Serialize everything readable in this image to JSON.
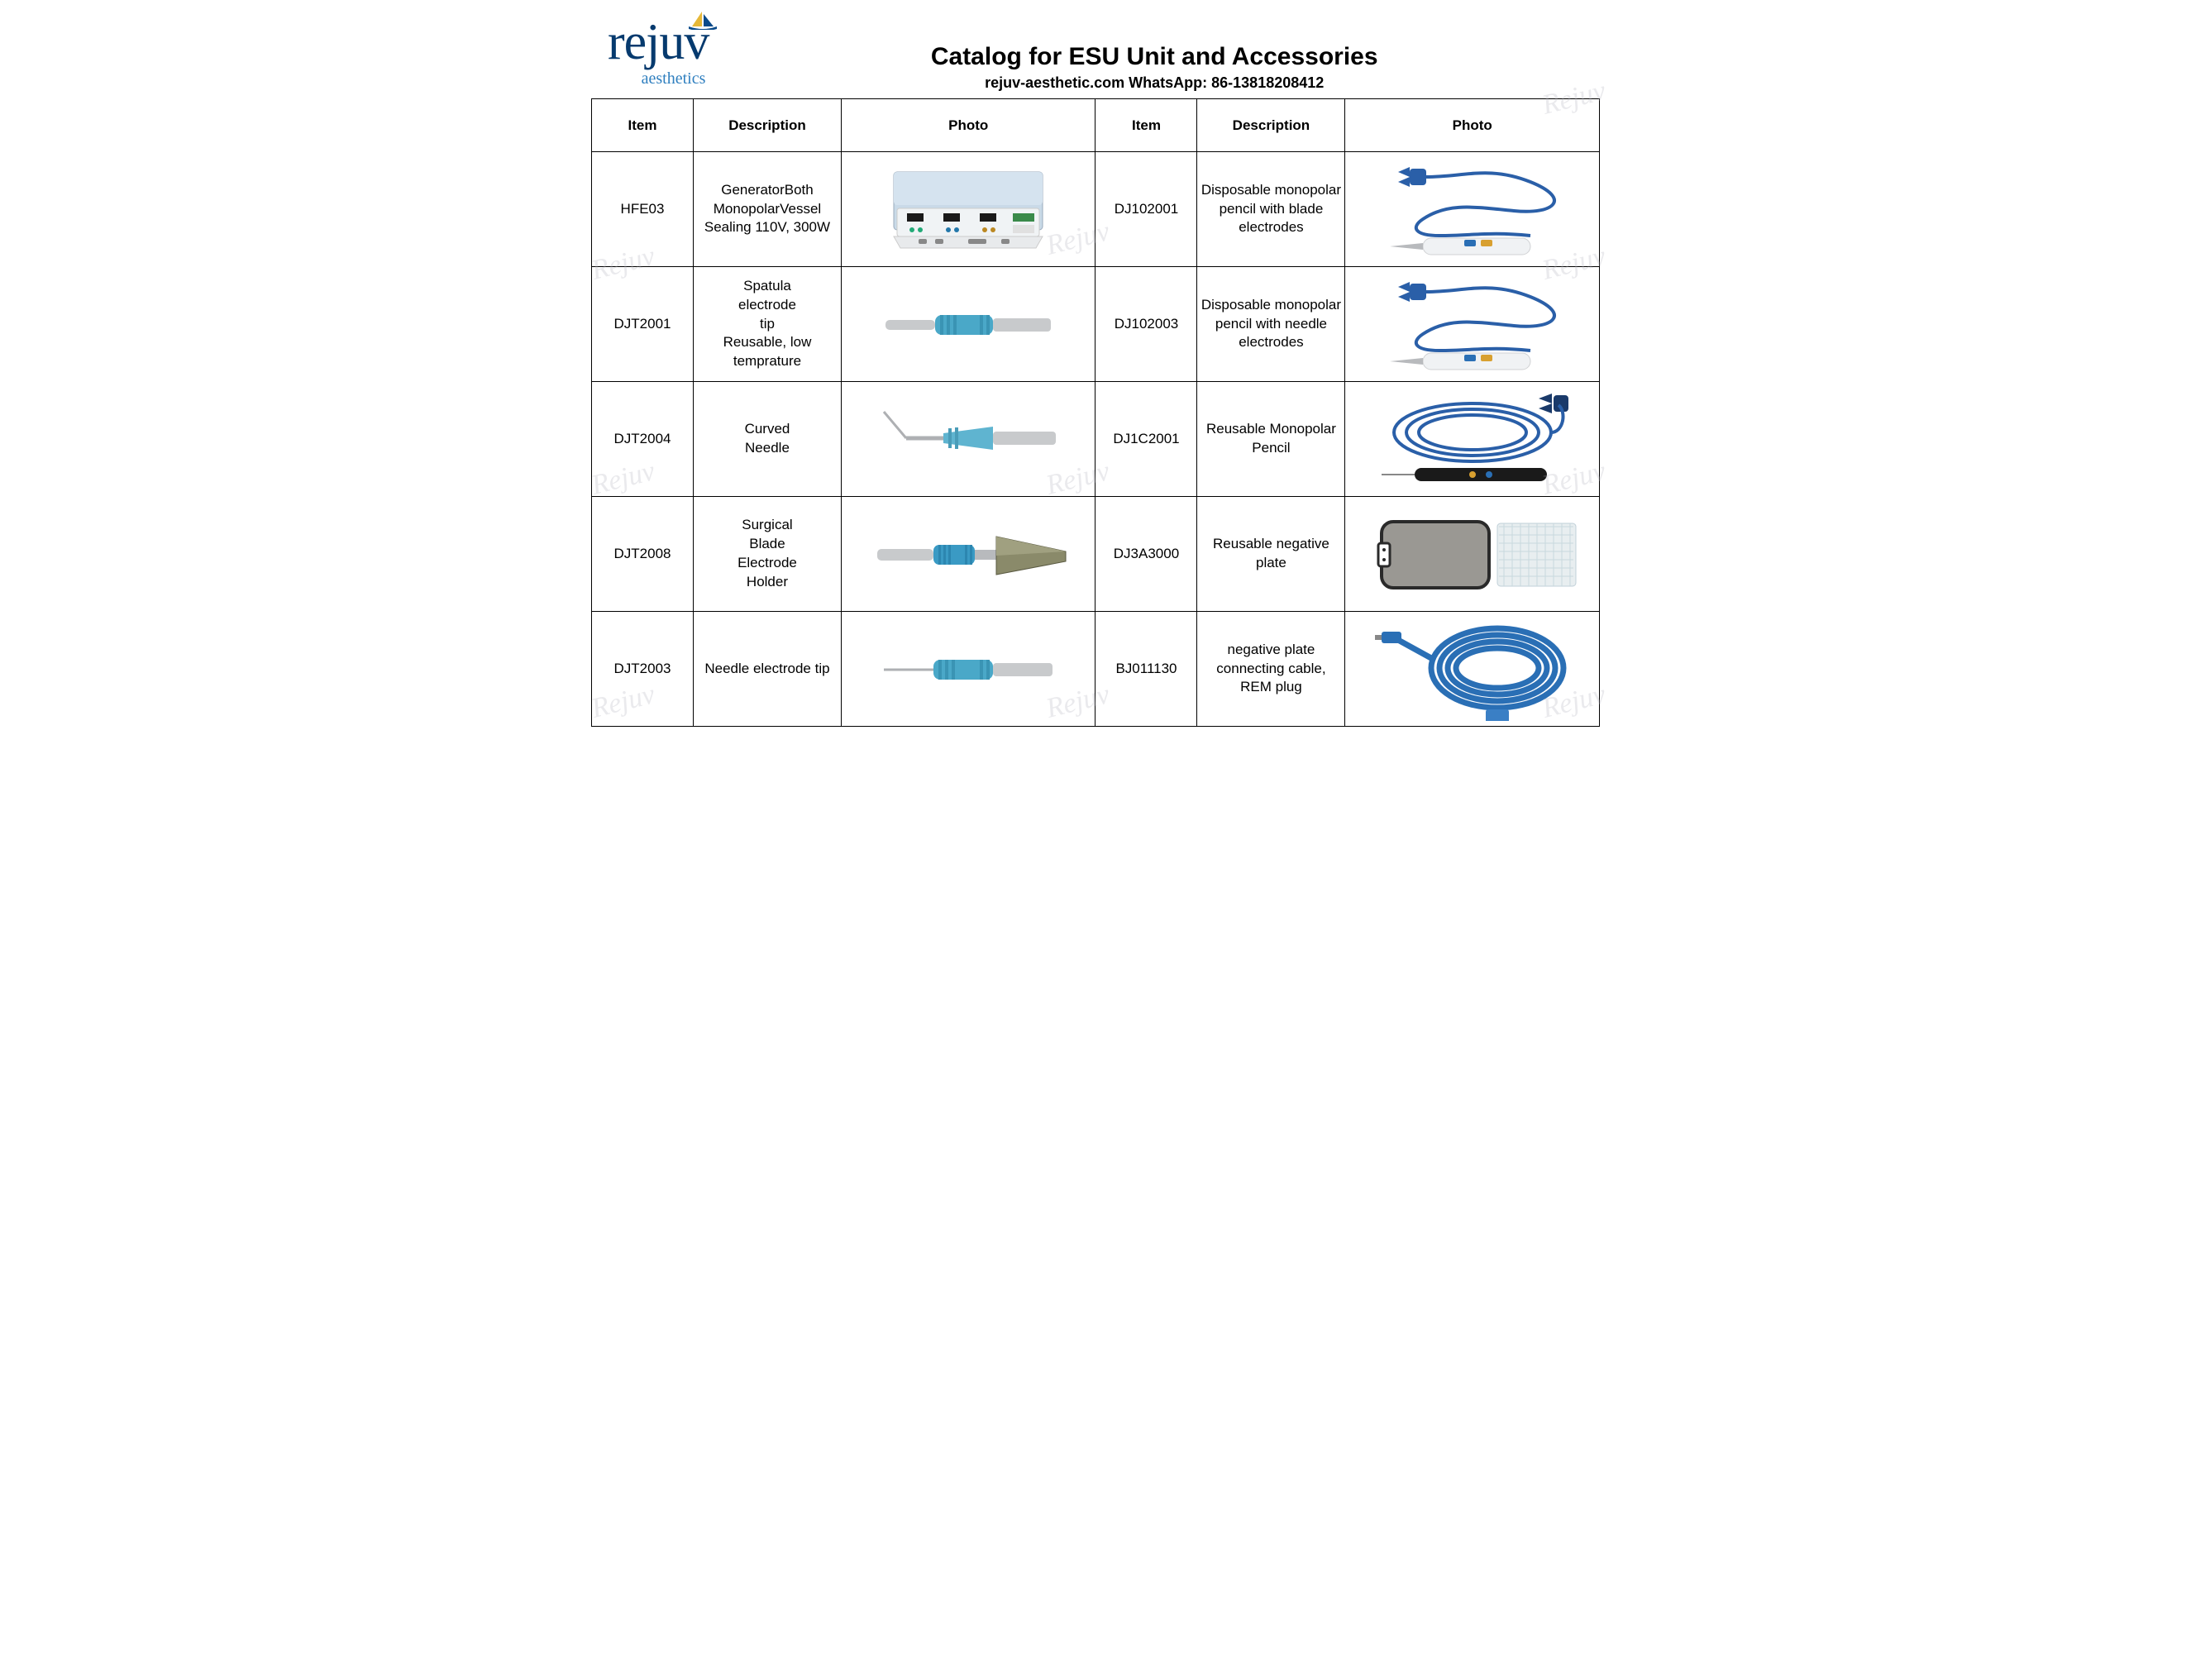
{
  "logo": {
    "main": "rejuv",
    "sub": "aesthetics",
    "main_color": "#063a6e",
    "sub_color": "#2f7fbf",
    "accent_yellow": "#e6b838",
    "accent_blue": "#0a4a8a"
  },
  "title": "Catalog for ESU Unit and Accessories",
  "subtitle": "rejuv-aesthetic.com WhatsApp: 86-13818208412",
  "headers": {
    "item": "Item",
    "description": "Description",
    "photo": "Photo"
  },
  "rows": [
    {
      "left": {
        "item": "HFE03",
        "description": "GeneratorBoth MonopolarVessel Sealing  110V, 300W",
        "photo": "generator"
      },
      "right": {
        "item": "DJ102001",
        "description": "Disposable monopolar pencil with blade electrodes",
        "photo": "pencil-cable-blue"
      }
    },
    {
      "left": {
        "item": "DJT2001",
        "description": "Spatula\nelectrode\ntip\nReusable, low\ntemprature",
        "photo": "spatula-tip"
      },
      "right": {
        "item": "DJ102003",
        "description": "Disposable monopolar pencil with needle electrodes",
        "photo": "pencil-cable-blue"
      }
    },
    {
      "left": {
        "item": "DJT2004",
        "description": "Curved\nNeedle",
        "photo": "curved-needle"
      },
      "right": {
        "item": "DJ1C2001",
        "description": "Reusable Monopolar Pencil",
        "photo": "reusable-pencil"
      }
    },
    {
      "left": {
        "item": "DJT2008",
        "description": "Surgical\nBlade\nElectrode\nHolder",
        "photo": "blade-holder"
      },
      "right": {
        "item": "DJ3A3000",
        "description": "Reusable negative plate",
        "photo": "neg-plate"
      }
    },
    {
      "left": {
        "item": "DJT2003",
        "description": "Needle electrode tip",
        "photo": "needle-tip"
      },
      "right": {
        "item": "BJ011130",
        "description": "negative plate connecting cable, REM plug",
        "photo": "coiled-cable"
      }
    }
  ],
  "colors": {
    "border": "#000000",
    "text": "#000000",
    "device_blue": "#2a6fb5",
    "device_lightblue": "#6fb8d8",
    "device_cyan": "#4aa8c8",
    "metal": "#b8babd",
    "metal_light": "#d8d9db",
    "white": "#f5f6f8",
    "olive": "#7a7a52",
    "plate_gray": "#9a9893",
    "plate_border": "#3a3a3a"
  },
  "watermark_text": "Rejuv"
}
